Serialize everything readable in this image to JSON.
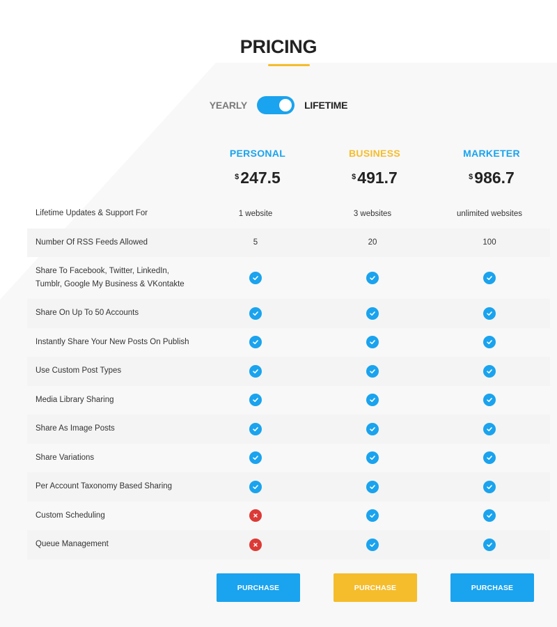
{
  "colors": {
    "accent_blue": "#1aa3ee",
    "accent_yellow": "#f5bd2c",
    "cross_red": "#dc3a36",
    "title": "#222222"
  },
  "header": {
    "title": "PRICING"
  },
  "billing_toggle": {
    "left_label": "YEARLY",
    "right_label": "LIFETIME",
    "selected": "LIFETIME"
  },
  "plans": [
    {
      "name": "PERSONAL",
      "currency": "$",
      "price": "247.5",
      "color": "#1aa3ee",
      "button_label": "PURCHASE"
    },
    {
      "name": "BUSINESS",
      "currency": "$",
      "price": "491.7",
      "color": "#f5bd2c",
      "button_label": "PURCHASE"
    },
    {
      "name": "MARKETER",
      "currency": "$",
      "price": "986.7",
      "color": "#1aa3ee",
      "button_label": "PURCHASE"
    }
  ],
  "features": [
    {
      "label": "Lifetime Updates & Support For",
      "values": [
        "1 website",
        "3 websites",
        "unlimited websites"
      ]
    },
    {
      "label": "Number Of RSS Feeds Allowed",
      "values": [
        "5",
        "20",
        "100"
      ]
    },
    {
      "label": "Share To Facebook, Twitter, LinkedIn, Tumblr, Google My Business & VKontakte",
      "values": [
        "check",
        "check",
        "check"
      ]
    },
    {
      "label": "Share On Up To 50 Accounts",
      "values": [
        "check",
        "check",
        "check"
      ]
    },
    {
      "label": "Instantly Share Your New Posts On Publish",
      "values": [
        "check",
        "check",
        "check"
      ]
    },
    {
      "label": "Use Custom Post Types",
      "values": [
        "check",
        "check",
        "check"
      ]
    },
    {
      "label": "Media Library Sharing",
      "values": [
        "check",
        "check",
        "check"
      ]
    },
    {
      "label": "Share As Image Posts",
      "values": [
        "check",
        "check",
        "check"
      ]
    },
    {
      "label": "Share Variations",
      "values": [
        "check",
        "check",
        "check"
      ]
    },
    {
      "label": "Per Account Taxonomy Based Sharing",
      "values": [
        "check",
        "check",
        "check"
      ]
    },
    {
      "label": "Custom Scheduling",
      "values": [
        "cross",
        "check",
        "check"
      ]
    },
    {
      "label": "Queue Management",
      "values": [
        "cross",
        "check",
        "check"
      ]
    }
  ],
  "icons": {
    "check": "check-circle-icon",
    "cross": "cross-circle-icon",
    "currency": "$"
  }
}
